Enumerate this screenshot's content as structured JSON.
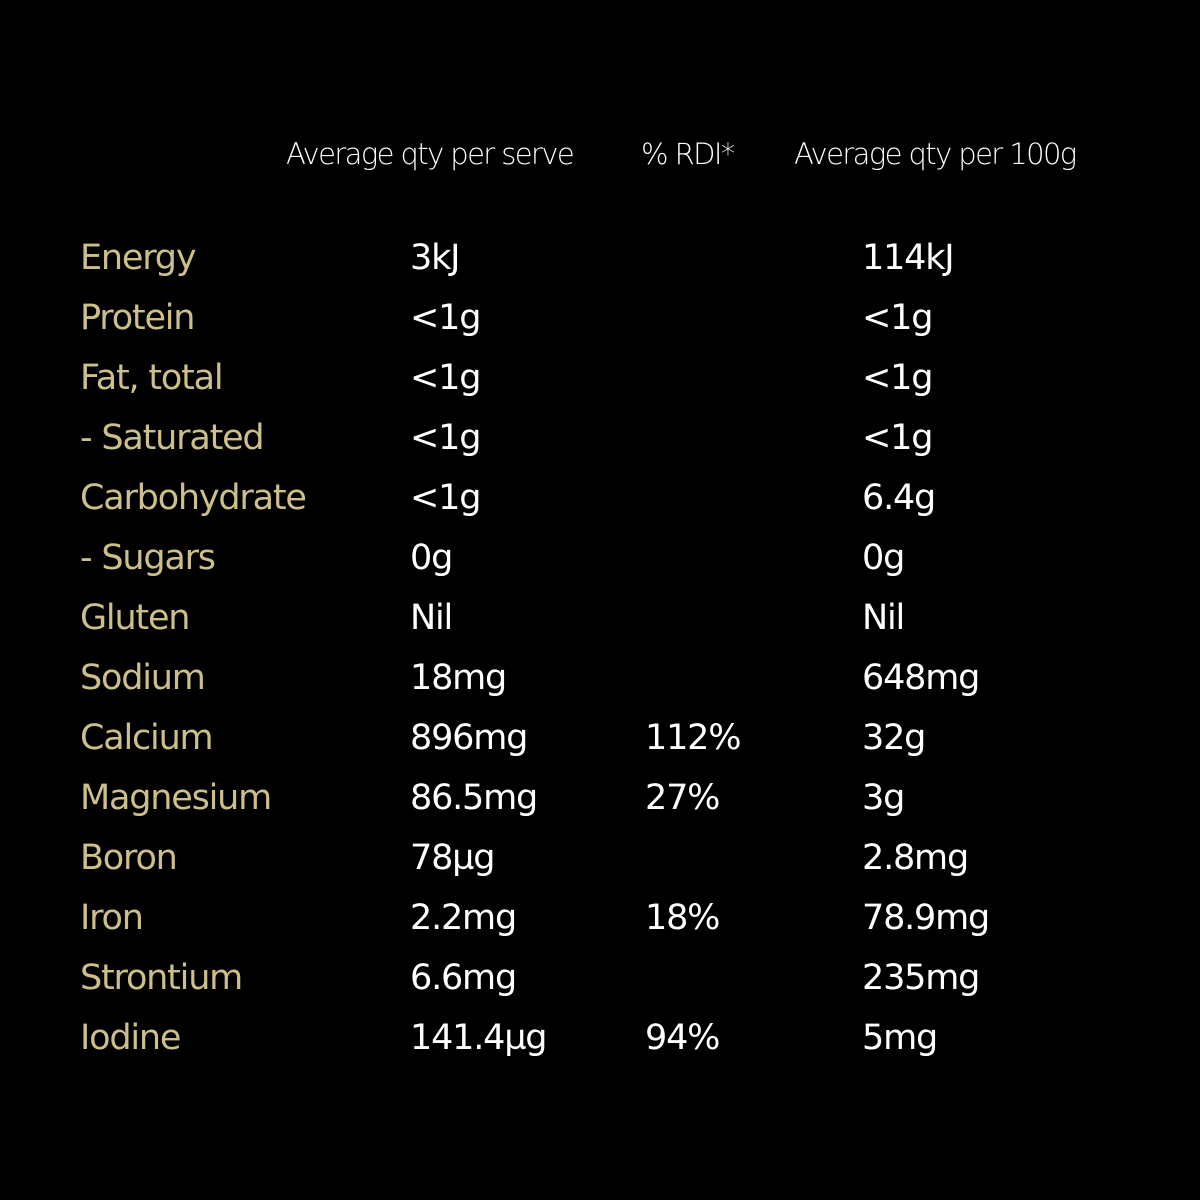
{
  "colors": {
    "background": "#000000",
    "label": "#cdbf8a",
    "value": "#ffffff"
  },
  "header": {
    "per_serve": "Average qty per serve",
    "rdi": "% RDI*",
    "per_100g": "Average qty per 100g"
  },
  "rows": [
    {
      "name": "Energy",
      "per_serve": "3kJ",
      "rdi": "",
      "per_100g": "114kJ"
    },
    {
      "name": "Protein",
      "per_serve": "<1g",
      "rdi": "",
      "per_100g": "<1g"
    },
    {
      "name": "Fat, total",
      "per_serve": "<1g",
      "rdi": "",
      "per_100g": "<1g"
    },
    {
      "name": "- Saturated",
      "per_serve": "<1g",
      "rdi": "",
      "per_100g": "<1g"
    },
    {
      "name": "Carbohydrate",
      "per_serve": "<1g",
      "rdi": "",
      "per_100g": "6.4g"
    },
    {
      "name": "- Sugars",
      "per_serve": "0g",
      "rdi": "",
      "per_100g": "0g"
    },
    {
      "name": "Gluten",
      "per_serve": "Nil",
      "rdi": "",
      "per_100g": "Nil"
    },
    {
      "name": "Sodium",
      "per_serve": "18mg",
      "rdi": "",
      "per_100g": "648mg"
    },
    {
      "name": "Calcium",
      "per_serve": "896mg",
      "rdi": "112%",
      "per_100g": "32g"
    },
    {
      "name": "Magnesium",
      "per_serve": "86.5mg",
      "rdi": "27%",
      "per_100g": "3g"
    },
    {
      "name": "Boron",
      "per_serve": "78µg",
      "rdi": "",
      "per_100g": "2.8mg"
    },
    {
      "name": "Iron",
      "per_serve": "2.2mg",
      "rdi": "18%",
      "per_100g": "78.9mg"
    },
    {
      "name": "Strontium",
      "per_serve": "6.6mg",
      "rdi": "",
      "per_100g": "235mg"
    },
    {
      "name": "Iodine",
      "per_serve": "141.4µg",
      "rdi": "94%",
      "per_100g": "5mg"
    }
  ]
}
